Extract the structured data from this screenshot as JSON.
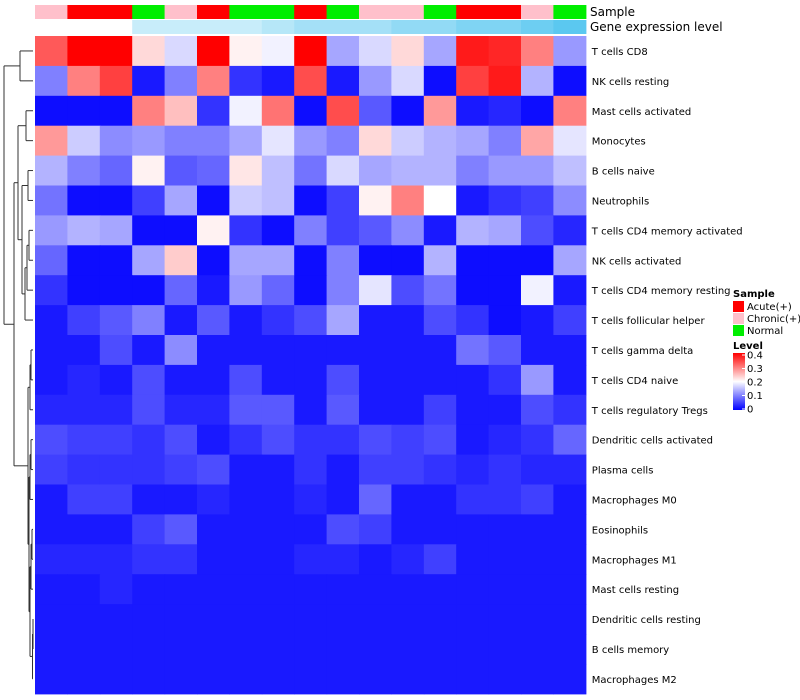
{
  "chart_data": {
    "type": "heatmap",
    "annotation_titles": {
      "sample": "Sample",
      "expression": "Gene expression level"
    },
    "rows": [
      "T cells CD8",
      "NK cells resting",
      "Mast cells activated",
      "Monocytes",
      "B cells naive",
      "Neutrophils",
      "T cells CD4 memory activated",
      "NK cells activated",
      "T cells CD4 memory resting",
      "T cells follicular helper",
      "T cells gamma delta",
      "T cells CD4 naive",
      "T cells regulatory  Tregs",
      "Dendritic cells activated",
      "Plasma cells",
      "Macrophages M0",
      "Eosinophils",
      "Macrophages M1",
      "Mast cells resting",
      "Dendritic cells resting",
      "B cells memory",
      "Macrophages M2"
    ],
    "samples": [
      "Chronic(+)",
      "Acute(+)",
      "Acute(+)",
      "Normal",
      "Chronic(+)",
      "Acute(+)",
      "Normal",
      "Normal",
      "Acute(+)",
      "Normal",
      "Chronic(+)",
      "Chronic(+)",
      "Normal",
      "Acute(+)",
      "Acute(+)",
      "Chronic(+)",
      "Normal"
    ],
    "expression_levels": [
      0.05,
      0.05,
      0.05,
      0.2,
      0.2,
      0.2,
      0.2,
      0.25,
      0.3,
      0.3,
      0.3,
      0.35,
      0.35,
      0.4,
      0.4,
      0.45,
      0.5
    ],
    "values": [
      [
        0.33,
        0.4,
        0.4,
        0.23,
        0.17,
        0.4,
        0.21,
        0.19,
        0.4,
        0.13,
        0.17,
        0.23,
        0.13,
        0.38,
        0.37,
        0.3,
        0.12
      ],
      [
        0.1,
        0.3,
        0.35,
        0.02,
        0.1,
        0.3,
        0.04,
        0.02,
        0.34,
        0.02,
        0.12,
        0.17,
        0.01,
        0.35,
        0.38,
        0.14,
        0.01
      ],
      [
        0.01,
        0.01,
        0.01,
        0.3,
        0.25,
        0.04,
        0.19,
        0.31,
        0.01,
        0.34,
        0.07,
        0.01,
        0.28,
        0.02,
        0.03,
        0.01,
        0.3
      ],
      [
        0.28,
        0.16,
        0.11,
        0.12,
        0.1,
        0.1,
        0.13,
        0.18,
        0.12,
        0.1,
        0.23,
        0.16,
        0.14,
        0.13,
        0.1,
        0.27,
        0.18
      ],
      [
        0.14,
        0.1,
        0.08,
        0.21,
        0.07,
        0.08,
        0.22,
        0.15,
        0.09,
        0.17,
        0.13,
        0.14,
        0.14,
        0.1,
        0.12,
        0.12,
        0.15
      ],
      [
        0.09,
        0.01,
        0.01,
        0.05,
        0.13,
        0.01,
        0.16,
        0.15,
        0.01,
        0.05,
        0.21,
        0.3,
        0.2,
        0.02,
        0.04,
        0.05,
        0.11
      ],
      [
        0.12,
        0.14,
        0.13,
        0.01,
        0.01,
        0.21,
        0.04,
        0.01,
        0.1,
        0.05,
        0.07,
        0.11,
        0.02,
        0.14,
        0.13,
        0.06,
        0.03
      ],
      [
        0.08,
        0.01,
        0.01,
        0.13,
        0.24,
        0.01,
        0.13,
        0.13,
        0.01,
        0.1,
        0.01,
        0.01,
        0.14,
        0.01,
        0.01,
        0.01,
        0.13
      ],
      [
        0.04,
        0.01,
        0.01,
        0.01,
        0.08,
        0.02,
        0.12,
        0.08,
        0.01,
        0.1,
        0.18,
        0.06,
        0.09,
        0.01,
        0.01,
        0.19,
        0.02
      ],
      [
        0.02,
        0.05,
        0.07,
        0.1,
        0.02,
        0.07,
        0.02,
        0.04,
        0.06,
        0.13,
        0.02,
        0.02,
        0.06,
        0.04,
        0.01,
        0.02,
        0.05
      ],
      [
        0.02,
        0.02,
        0.06,
        0.02,
        0.11,
        0.02,
        0.02,
        0.02,
        0.02,
        0.02,
        0.02,
        0.02,
        0.02,
        0.09,
        0.07,
        0.02,
        0.02
      ],
      [
        0.02,
        0.03,
        0.02,
        0.06,
        0.02,
        0.02,
        0.06,
        0.02,
        0.02,
        0.06,
        0.02,
        0.02,
        0.02,
        0.02,
        0.04,
        0.12,
        0.02
      ],
      [
        0.03,
        0.03,
        0.03,
        0.06,
        0.03,
        0.03,
        0.07,
        0.07,
        0.02,
        0.07,
        0.02,
        0.02,
        0.05,
        0.02,
        0.02,
        0.06,
        0.04
      ],
      [
        0.06,
        0.05,
        0.05,
        0.04,
        0.06,
        0.02,
        0.04,
        0.06,
        0.04,
        0.04,
        0.06,
        0.05,
        0.06,
        0.02,
        0.03,
        0.04,
        0.08
      ],
      [
        0.05,
        0.04,
        0.04,
        0.04,
        0.05,
        0.06,
        0.02,
        0.02,
        0.04,
        0.02,
        0.05,
        0.05,
        0.04,
        0.03,
        0.04,
        0.03,
        0.03
      ],
      [
        0.02,
        0.05,
        0.05,
        0.02,
        0.02,
        0.03,
        0.02,
        0.02,
        0.03,
        0.02,
        0.08,
        0.02,
        0.02,
        0.04,
        0.04,
        0.05,
        0.02
      ],
      [
        0.02,
        0.02,
        0.02,
        0.05,
        0.07,
        0.02,
        0.02,
        0.02,
        0.02,
        0.06,
        0.05,
        0.02,
        0.02,
        0.02,
        0.02,
        0.02,
        0.02
      ],
      [
        0.03,
        0.03,
        0.03,
        0.04,
        0.04,
        0.02,
        0.02,
        0.02,
        0.03,
        0.03,
        0.02,
        0.03,
        0.05,
        0.02,
        0.02,
        0.02,
        0.02
      ],
      [
        0.02,
        0.02,
        0.03,
        0.02,
        0.02,
        0.02,
        0.02,
        0.02,
        0.02,
        0.02,
        0.02,
        0.02,
        0.02,
        0.02,
        0.02,
        0.02,
        0.02
      ],
      [
        0.02,
        0.02,
        0.02,
        0.02,
        0.02,
        0.02,
        0.02,
        0.02,
        0.02,
        0.02,
        0.02,
        0.02,
        0.02,
        0.02,
        0.02,
        0.02,
        0.02
      ],
      [
        0.02,
        0.02,
        0.02,
        0.02,
        0.02,
        0.02,
        0.02,
        0.02,
        0.02,
        0.02,
        0.02,
        0.02,
        0.02,
        0.02,
        0.02,
        0.02,
        0.02
      ],
      [
        0.02,
        0.02,
        0.02,
        0.02,
        0.02,
        0.02,
        0.02,
        0.02,
        0.02,
        0.02,
        0.02,
        0.02,
        0.02,
        0.02,
        0.02,
        0.02,
        0.02
      ]
    ],
    "sample_legend": {
      "title": "Sample",
      "items": [
        {
          "label": "Acute(+)",
          "color": "#ff0000"
        },
        {
          "label": "Chronic(+)",
          "color": "#ffc0cb"
        },
        {
          "label": "Normal",
          "color": "#00ee00"
        }
      ]
    },
    "level_legend": {
      "title": "Level",
      "ticks": [
        "0.4",
        "0.3",
        "0.2",
        "0.1",
        "0"
      ],
      "range": [
        0,
        0.4
      ],
      "colors": {
        "low": "#0000ff",
        "mid": "#ffffff",
        "high": "#ff0000"
      }
    },
    "expression_colors": {
      "low": "#ffffff",
      "high": "#5bc8f0"
    }
  }
}
